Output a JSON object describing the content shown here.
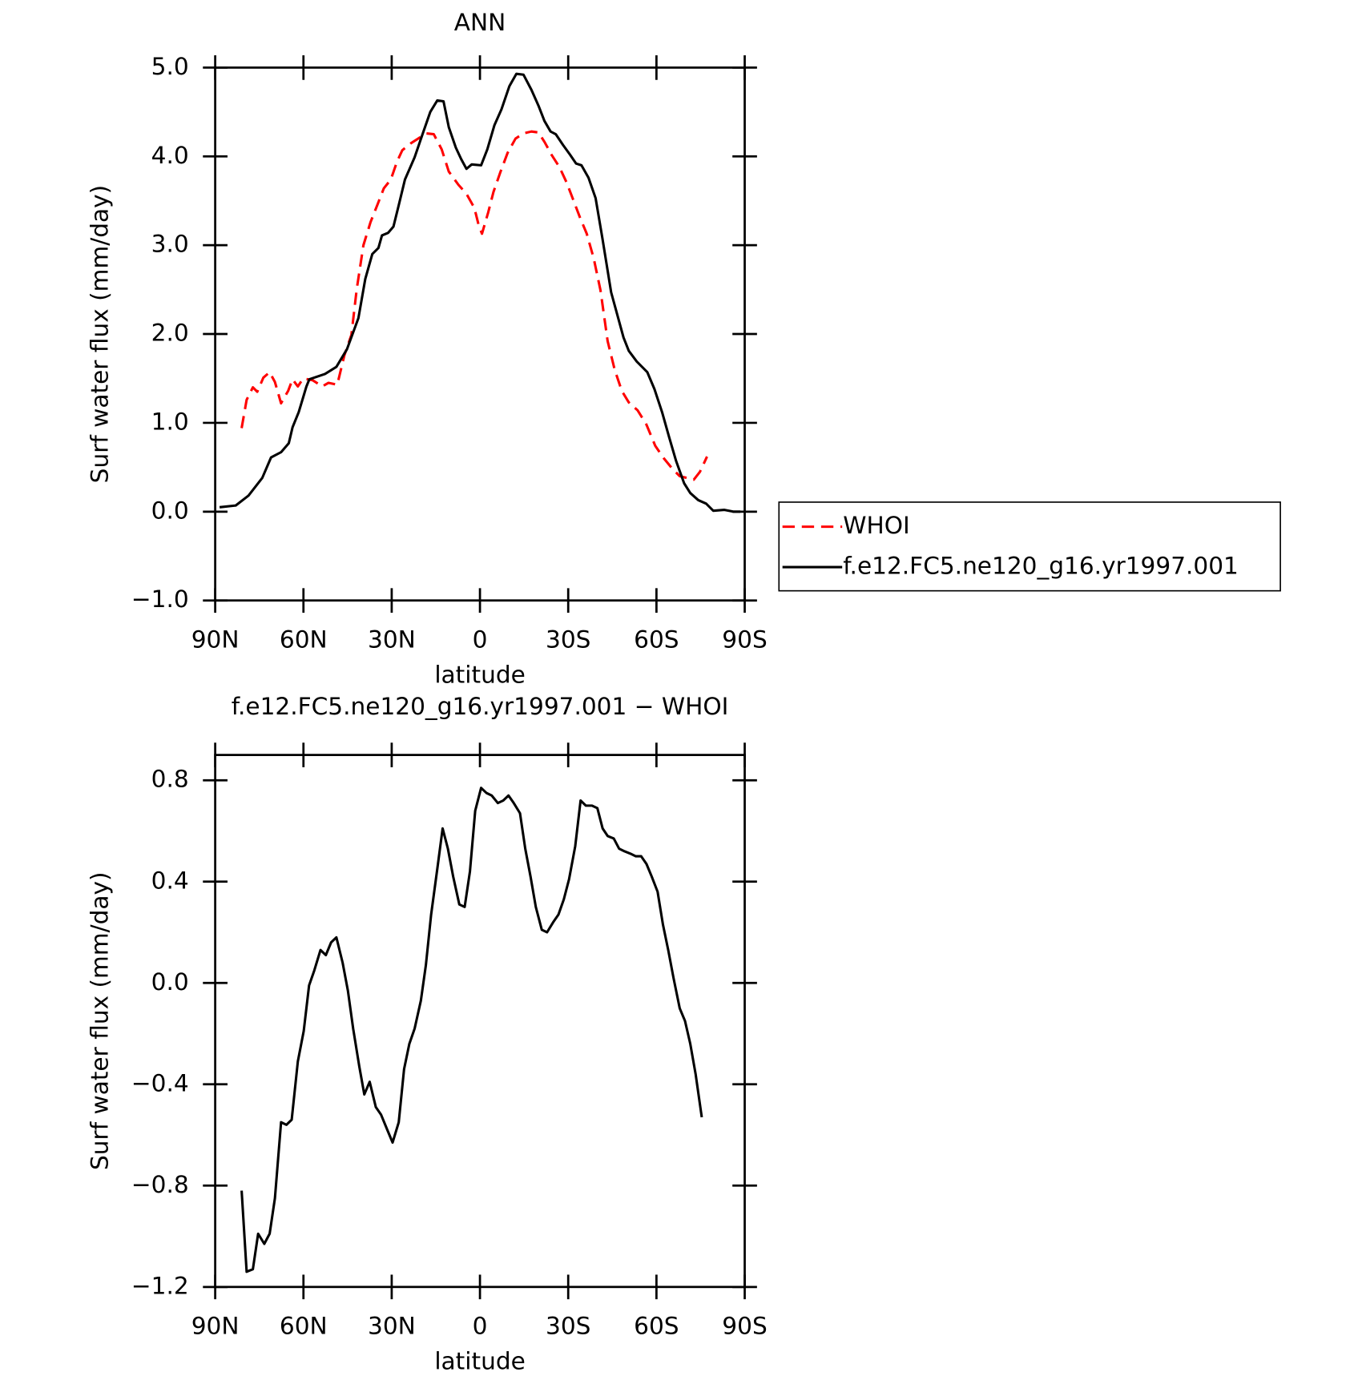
{
  "chart_data": [
    {
      "type": "line",
      "title": "ANN",
      "xlabel": "latitude",
      "ylabel": "Surf water flux (mm/day)",
      "xlim": [
        90,
        -90
      ],
      "xticks": [
        {
          "value": 90,
          "label": "90N"
        },
        {
          "value": 60,
          "label": "60N"
        },
        {
          "value": 30,
          "label": "30N"
        },
        0,
        {
          "value": -30,
          "label": "30S"
        },
        {
          "value": -60,
          "label": "60S"
        },
        {
          "value": -90,
          "label": "90S"
        }
      ],
      "ylim": [
        -1,
        5
      ],
      "yticks": [
        {
          "value": -1,
          "label": "−1.0"
        },
        {
          "value": 0,
          "label": "0.0"
        },
        {
          "value": 1,
          "label": "1.0"
        },
        {
          "value": 2,
          "label": "2.0"
        },
        {
          "value": 3,
          "label": "3.0"
        },
        {
          "value": 4,
          "label": "4.0"
        },
        {
          "value": 5,
          "label": "5.0"
        }
      ],
      "legend": "outside-right",
      "series": [
        {
          "name": "WHOI",
          "color": "#ff0000",
          "dash": true,
          "x": [
            81,
            79.3,
            77.2,
            75.7,
            73.6,
            71.5,
            69.7,
            67.6,
            65.2,
            63.7,
            61.9,
            60.1,
            56.9,
            53.6,
            51.5,
            48.5,
            46.1,
            43.7,
            41.9,
            39.6,
            37.2,
            34.8,
            32.7,
            30.3,
            28.2,
            26.4,
            23.4,
            21,
            18.4,
            15.7,
            13,
            10.6,
            7.3,
            4.6,
            1.9,
            0.4,
            -0.7,
            -2.8,
            -4.6,
            -7,
            -9.4,
            -12.1,
            -14.8,
            -17.5,
            -19.9,
            -22,
            -24.3,
            -27,
            -29.4,
            -31.5,
            -33.9,
            -36.3,
            -38.7,
            -41,
            -43.4,
            -45.8,
            -48.2,
            -50.6,
            -53.6,
            -56.6,
            -59.6,
            -62.5,
            -65.5,
            -67.9,
            -70.3,
            -72.7,
            -74.8,
            -77.2
          ],
          "values": [
            0.94,
            1.26,
            1.4,
            1.35,
            1.51,
            1.57,
            1.46,
            1.22,
            1.36,
            1.49,
            1.41,
            1.5,
            1.48,
            1.41,
            1.45,
            1.43,
            1.76,
            1.99,
            2.5,
            3.0,
            3.26,
            3.46,
            3.64,
            3.74,
            3.94,
            4.07,
            4.15,
            4.2,
            4.26,
            4.25,
            4.08,
            3.83,
            3.68,
            3.58,
            3.42,
            3.22,
            3.13,
            3.37,
            3.6,
            3.83,
            4.04,
            4.2,
            4.26,
            4.28,
            4.27,
            4.16,
            4.02,
            3.88,
            3.71,
            3.53,
            3.32,
            3.13,
            2.85,
            2.49,
            1.92,
            1.6,
            1.36,
            1.23,
            1.14,
            0.98,
            0.74,
            0.6,
            0.48,
            0.4,
            0.38,
            0.36,
            0.45,
            0.62
          ]
        },
        {
          "name": "f.e12.FC5.ne120_g16.yr1997.001",
          "color": "#000000",
          "dash": false,
          "x": [
            88.5,
            83,
            78.7,
            74,
            71,
            67.6,
            65,
            63.7,
            61.6,
            59,
            58,
            52.7,
            48.8,
            45.2,
            41.3,
            39,
            36.6,
            34.5,
            33.3,
            31.2,
            29.4,
            27.6,
            25.5,
            22.2,
            19.3,
            16.9,
            14.5,
            12.4,
            10.6,
            8.2,
            6.4,
            4.6,
            2.8,
            -0.4,
            -2.5,
            -4.9,
            -7.3,
            -10,
            -12.4,
            -14.8,
            -17.5,
            -19.9,
            -21.9,
            -24,
            -25.8,
            -28.2,
            -30.6,
            -32.7,
            -34.5,
            -36.9,
            -39.3,
            -41.6,
            -44.6,
            -48.8,
            -50.6,
            -53.3,
            -56.9,
            -59.3,
            -61.9,
            -64.3,
            -66.7,
            -69.4,
            -71.5,
            -74.2,
            -76.9,
            -79.3,
            -83.1,
            -86.1,
            -88.5
          ],
          "values": [
            0.05,
            0.07,
            0.18,
            0.38,
            0.61,
            0.67,
            0.77,
            0.95,
            1.12,
            1.41,
            1.49,
            1.55,
            1.63,
            1.83,
            2.18,
            2.62,
            2.9,
            2.97,
            3.11,
            3.14,
            3.21,
            3.45,
            3.74,
            3.99,
            4.27,
            4.5,
            4.63,
            4.62,
            4.33,
            4.1,
            3.97,
            3.86,
            3.91,
            3.9,
            4.08,
            4.35,
            4.53,
            4.79,
            4.93,
            4.92,
            4.75,
            4.57,
            4.4,
            4.28,
            4.25,
            4.13,
            4.02,
            3.92,
            3.9,
            3.76,
            3.53,
            3.08,
            2.47,
            1.96,
            1.81,
            1.69,
            1.57,
            1.38,
            1.12,
            0.84,
            0.57,
            0.32,
            0.21,
            0.13,
            0.09,
            0.01,
            0.02,
            0.0,
            0.0
          ]
        }
      ]
    },
    {
      "type": "line",
      "title": "f.e12.FC5.ne120_g16.yr1997.001 − WHOI",
      "xlabel": "latitude",
      "ylabel": "Surf water flux (mm/day)",
      "xlim": [
        90,
        -90
      ],
      "xticks": [
        {
          "value": 90,
          "label": "90N"
        },
        {
          "value": 60,
          "label": "60N"
        },
        {
          "value": 30,
          "label": "30N"
        },
        0,
        {
          "value": -30,
          "label": "30S"
        },
        {
          "value": -60,
          "label": "60S"
        },
        {
          "value": -90,
          "label": "90S"
        }
      ],
      "ylim": [
        -1.2,
        0.9
      ],
      "yticks": [
        {
          "value": -1.2,
          "label": "−1.2"
        },
        {
          "value": -0.8,
          "label": "−0.8"
        },
        {
          "value": -0.4,
          "label": "−0.4"
        },
        {
          "value": 0,
          "label": "0.0"
        },
        {
          "value": 0.4,
          "label": "0.4"
        },
        {
          "value": 0.8,
          "label": "0.8"
        }
      ],
      "series": [
        {
          "color": "#000000",
          "dash": false,
          "x": [
            81,
            79.3,
            77.2,
            75.4,
            73.3,
            71.5,
            69.7,
            67.6,
            65.8,
            64,
            61.9,
            59.9,
            58.1,
            56.3,
            54.2,
            52.4,
            50.6,
            48.8,
            46.7,
            44.9,
            43.1,
            41,
            39.3,
            37.5,
            35.4,
            33.6,
            31.5,
            29.7,
            27.6,
            25.8,
            24,
            22.2,
            20.1,
            18.4,
            16.6,
            14.5,
            12.7,
            10.9,
            9.1,
            7,
            5.2,
            3.4,
            1.6,
            -0.4,
            -2.2,
            -4,
            -6.1,
            -7.9,
            -9.7,
            -11.5,
            -13.6,
            -15.4,
            -17.2,
            -19,
            -21,
            -22.8,
            -24.9,
            -26.7,
            -28.5,
            -30.3,
            -32.4,
            -34.2,
            -36,
            -38.1,
            -39.9,
            -41.7,
            -43.4,
            -45.5,
            -47.3,
            -49.1,
            -51.2,
            -53,
            -54.8,
            -56.6,
            -58.4,
            -60.4,
            -62.2,
            -64,
            -65.8,
            -67.9,
            -69.7,
            -71.5,
            -73.3,
            -75.4
          ],
          "values": [
            -0.82,
            -1.14,
            -1.13,
            -0.99,
            -1.03,
            -0.99,
            -0.85,
            -0.55,
            -0.56,
            -0.54,
            -0.31,
            -0.19,
            -0.01,
            0.05,
            0.13,
            0.11,
            0.16,
            0.18,
            0.08,
            -0.03,
            -0.18,
            -0.33,
            -0.44,
            -0.39,
            -0.49,
            -0.52,
            -0.58,
            -0.63,
            -0.55,
            -0.34,
            -0.24,
            -0.18,
            -0.07,
            0.07,
            0.27,
            0.45,
            0.61,
            0.53,
            0.42,
            0.31,
            0.3,
            0.44,
            0.68,
            0.77,
            0.75,
            0.74,
            0.71,
            0.72,
            0.74,
            0.71,
            0.67,
            0.53,
            0.42,
            0.3,
            0.21,
            0.2,
            0.24,
            0.27,
            0.33,
            0.41,
            0.54,
            0.72,
            0.7,
            0.7,
            0.69,
            0.61,
            0.58,
            0.57,
            0.53,
            0.52,
            0.51,
            0.5,
            0.5,
            0.47,
            0.42,
            0.36,
            0.23,
            0.13,
            0.02,
            -0.1,
            -0.15,
            -0.24,
            -0.36,
            -0.53
          ]
        }
      ]
    }
  ]
}
